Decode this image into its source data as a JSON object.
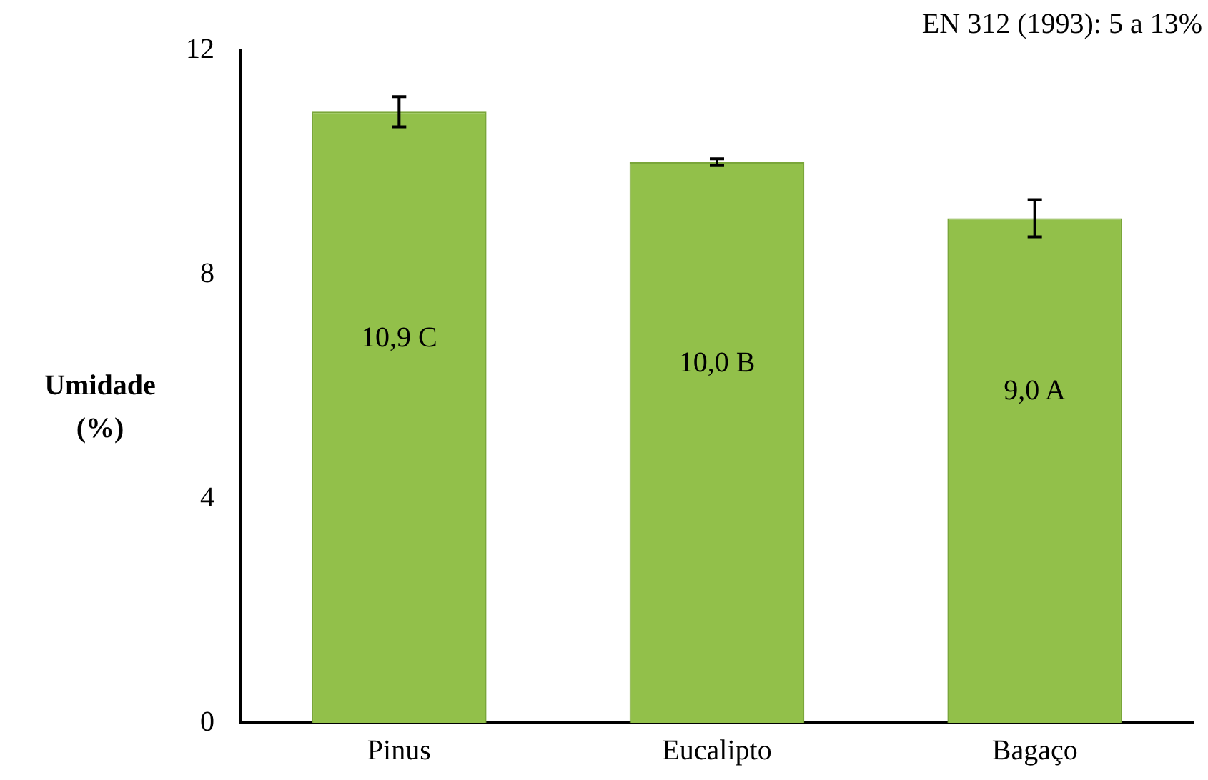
{
  "chart_data": {
    "type": "bar",
    "ylabel": "Umidade (%)",
    "annotations": [
      "EN 312 (1993): 5 a 13%"
    ],
    "categories": [
      "Pinus",
      "Eucalipto",
      "Bagaço"
    ],
    "values": [
      10.9,
      10.0,
      9.0
    ],
    "errors": [
      0.27,
      0.06,
      0.33
    ],
    "value_labels": [
      "10,9 C",
      "10,0 B",
      "9,0 A"
    ],
    "color": "#92c04a",
    "ylim": [
      0,
      12
    ],
    "yticks": [
      0,
      4,
      8,
      12
    ],
    "grid": false,
    "legend": false
  }
}
